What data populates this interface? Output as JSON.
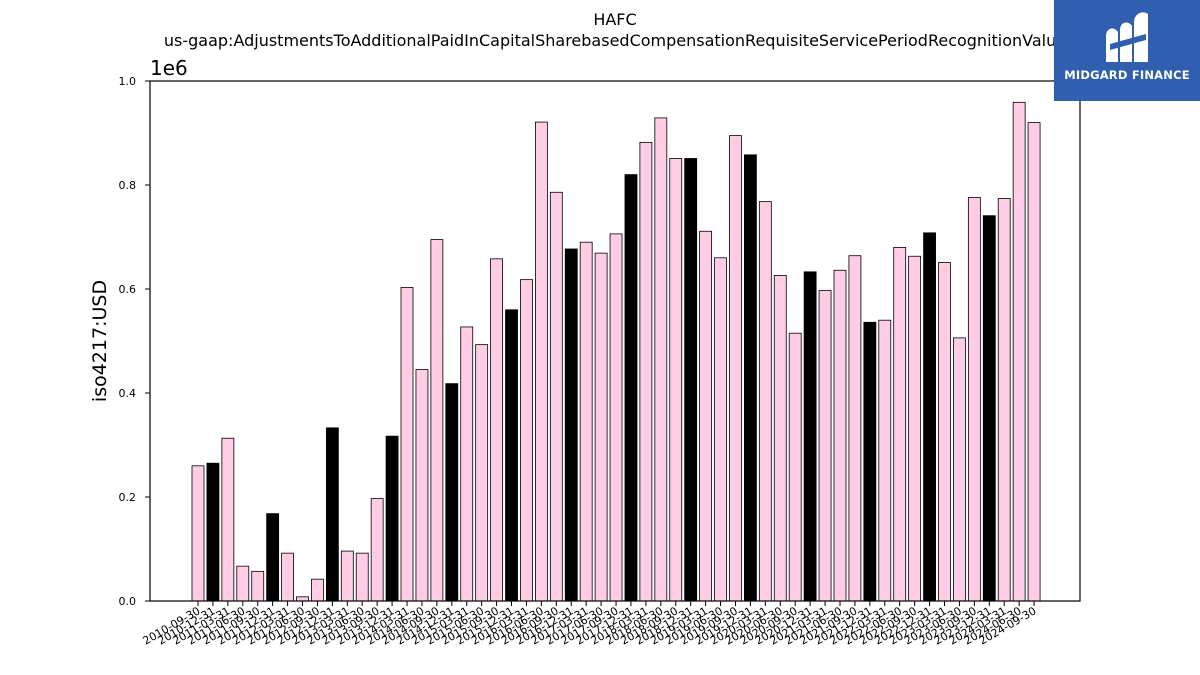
{
  "chart_data": {
    "type": "bar",
    "title": "HAFC",
    "subtitle": "us-gaap:AdjustmentsToAdditionalPaidInCapitalSharebasedCompensationRequisiteServicePeriodRecognitionValue",
    "xlabel": "",
    "ylabel": "iso4217:USD",
    "y_multiplier_label": "1e6",
    "ylim": [
      0,
      1000000
    ],
    "y_ticks": [
      0,
      200000,
      400000,
      600000,
      800000,
      1000000
    ],
    "y_tick_labels": [
      "0.0",
      "0.2",
      "0.4",
      "0.6",
      "0.8",
      "1.0"
    ],
    "grid": false,
    "legend": "none",
    "colors": {
      "quarter_bar": "#ffcce6",
      "fy_bar": "#000000",
      "edge": "#000000"
    },
    "categories": [
      "2010-09-30",
      "2010-12-31",
      "2011-03-31",
      "2011-06-30",
      "2011-09-30",
      "2011-12-31",
      "2012-03-31",
      "2012-06-30",
      "2012-09-30",
      "2012-12-31",
      "2013-03-31",
      "2013-06-30",
      "2013-09-30",
      "2013-12-31",
      "2014-03-31",
      "2014-06-30",
      "2014-09-30",
      "2014-12-31",
      "2015-03-31",
      "2015-06-30",
      "2015-09-30",
      "2015-12-31",
      "2016-03-31",
      "2016-06-30",
      "2016-09-30",
      "2016-12-31",
      "2017-03-31",
      "2017-06-30",
      "2017-09-30",
      "2017-12-31",
      "2018-03-31",
      "2018-06-30",
      "2018-09-30",
      "2018-12-31",
      "2019-03-31",
      "2019-06-30",
      "2019-09-30",
      "2019-12-31",
      "2020-03-31",
      "2020-06-30",
      "2020-09-30",
      "2020-12-31",
      "2021-03-31",
      "2021-06-30",
      "2021-09-30",
      "2021-12-31",
      "2022-03-31",
      "2022-06-30",
      "2022-09-30",
      "2022-12-31",
      "2023-03-31",
      "2023-06-30",
      "2023-09-30",
      "2023-12-31",
      "2024-03-31",
      "2024-06-30",
      "2024-09-30"
    ],
    "values": [
      260000,
      265000,
      313000,
      67000,
      57000,
      168000,
      92000,
      8000,
      42000,
      333000,
      96000,
      92000,
      197000,
      317000,
      603000,
      445000,
      695000,
      418000,
      527000,
      493000,
      658000,
      560000,
      618000,
      921000,
      786000,
      677000,
      690000,
      669000,
      706000,
      820000,
      882000,
      929000,
      851000,
      851000,
      711000,
      660000,
      895000,
      858000,
      768000,
      626000,
      515000,
      633000,
      597000,
      636000,
      664000,
      536000,
      540000,
      680000,
      663000,
      708000,
      651000,
      506000,
      776000,
      741000,
      774000,
      959000,
      920000
    ],
    "annual_flags": [
      0,
      1,
      0,
      0,
      0,
      1,
      0,
      0,
      0,
      1,
      0,
      0,
      0,
      1,
      0,
      0,
      0,
      1,
      0,
      0,
      0,
      1,
      0,
      0,
      0,
      1,
      0,
      0,
      0,
      1,
      0,
      0,
      0,
      1,
      0,
      0,
      0,
      1,
      0,
      0,
      0,
      1,
      0,
      0,
      0,
      1,
      0,
      0,
      0,
      1,
      0,
      0,
      0,
      1,
      0,
      0,
      0
    ]
  },
  "logo": {
    "text": "MIDGARD FINANCE",
    "icon": "midgard-logo-icon"
  }
}
